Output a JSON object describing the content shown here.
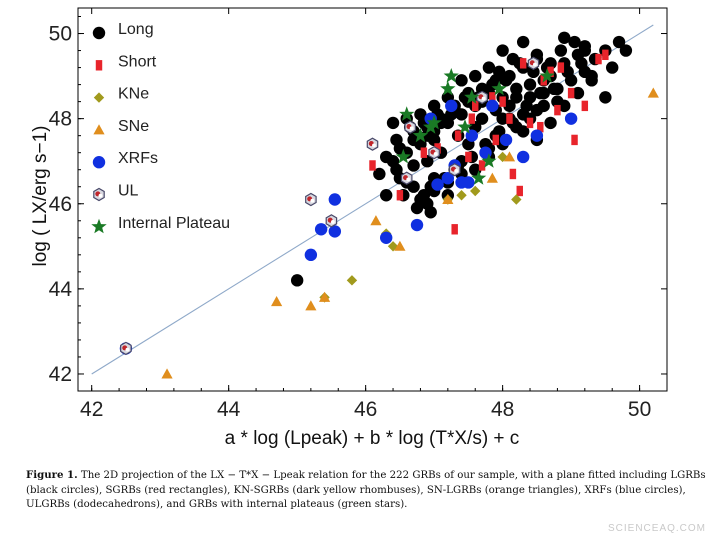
{
  "chart_data": {
    "type": "scatter",
    "xlabel": "a * log (Lpeak) + b * log (T*X/s) + c",
    "ylabel": "log ( LX/erg s−1)",
    "xlim": [
      41.8,
      50.4
    ],
    "ylim": [
      41.6,
      50.6
    ],
    "x_ticks": [
      42,
      44,
      46,
      48,
      50
    ],
    "y_ticks": [
      42,
      44,
      46,
      48,
      50
    ],
    "grid": false,
    "legend_position": "top-left",
    "fit_line": {
      "x": [
        42,
        50.2
      ],
      "y": [
        42.0,
        50.2
      ],
      "color": "#8fa9c9"
    },
    "series": [
      {
        "name": "Long",
        "marker": "circle",
        "color": "#000000",
        "points": [
          [
            45.0,
            44.2
          ],
          [
            46.3,
            46.2
          ],
          [
            46.5,
            46.6
          ],
          [
            46.7,
            46.9
          ],
          [
            46.8,
            46.1
          ],
          [
            46.9,
            46.0
          ],
          [
            46.95,
            45.8
          ],
          [
            46.7,
            46.4
          ],
          [
            46.9,
            47.0
          ],
          [
            47.0,
            47.5
          ],
          [
            47.1,
            47.2
          ],
          [
            47.0,
            46.6
          ],
          [
            47.2,
            46.2
          ],
          [
            47.3,
            46.8
          ],
          [
            47.4,
            47.0
          ],
          [
            47.35,
            47.6
          ],
          [
            47.5,
            47.4
          ],
          [
            47.6,
            47.8
          ],
          [
            47.7,
            48.0
          ],
          [
            47.8,
            47.3
          ],
          [
            47.9,
            47.6
          ],
          [
            48.0,
            48.0
          ],
          [
            48.1,
            48.3
          ],
          [
            48.2,
            48.5
          ],
          [
            48.3,
            48.1
          ],
          [
            48.4,
            48.8
          ],
          [
            48.5,
            48.2
          ],
          [
            48.6,
            48.6
          ],
          [
            48.7,
            49.0
          ],
          [
            48.8,
            48.4
          ],
          [
            48.9,
            49.3
          ],
          [
            49.0,
            48.9
          ],
          [
            49.1,
            49.5
          ],
          [
            49.2,
            49.1
          ],
          [
            49.3,
            49.0
          ],
          [
            49.5,
            49.6
          ],
          [
            49.7,
            49.8
          ],
          [
            49.6,
            49.2
          ],
          [
            49.2,
            49.7
          ],
          [
            48.7,
            49.3
          ],
          [
            48.5,
            49.5
          ],
          [
            48.3,
            49.8
          ],
          [
            48.0,
            49.6
          ],
          [
            47.8,
            49.2
          ],
          [
            47.6,
            49.0
          ],
          [
            47.4,
            48.9
          ],
          [
            47.2,
            48.5
          ],
          [
            47.0,
            48.3
          ],
          [
            46.8,
            48.1
          ],
          [
            46.6,
            48.0
          ],
          [
            46.4,
            47.9
          ],
          [
            46.7,
            47.7
          ],
          [
            46.9,
            47.6
          ],
          [
            47.1,
            47.9
          ],
          [
            47.3,
            48.2
          ],
          [
            47.5,
            48.4
          ],
          [
            47.7,
            48.7
          ],
          [
            47.9,
            48.9
          ],
          [
            48.1,
            49.0
          ],
          [
            48.3,
            49.2
          ],
          [
            48.5,
            49.4
          ],
          [
            48.9,
            49.9
          ],
          [
            49.2,
            49.6
          ],
          [
            48.6,
            48.9
          ],
          [
            48.4,
            48.5
          ],
          [
            48.2,
            47.8
          ],
          [
            48.0,
            47.4
          ],
          [
            47.8,
            47.1
          ],
          [
            47.6,
            46.8
          ],
          [
            47.4,
            46.7
          ],
          [
            47.2,
            46.5
          ],
          [
            47.0,
            46.3
          ],
          [
            46.85,
            46.2
          ],
          [
            46.6,
            46.5
          ],
          [
            46.45,
            46.8
          ],
          [
            46.3,
            47.1
          ],
          [
            46.5,
            47.3
          ],
          [
            46.7,
            47.5
          ],
          [
            46.9,
            47.8
          ],
          [
            47.1,
            48.0
          ],
          [
            47.3,
            48.3
          ],
          [
            47.5,
            48.6
          ],
          [
            47.7,
            48.4
          ],
          [
            47.9,
            48.2
          ],
          [
            48.1,
            48.0
          ],
          [
            48.3,
            47.7
          ],
          [
            48.5,
            47.5
          ],
          [
            48.7,
            47.9
          ],
          [
            48.9,
            48.3
          ],
          [
            49.1,
            48.6
          ],
          [
            49.3,
            48.9
          ],
          [
            49.5,
            48.5
          ],
          [
            49.8,
            49.6
          ],
          [
            48.8,
            48.7
          ],
          [
            48.6,
            48.3
          ],
          [
            48.4,
            48.0
          ],
          [
            48.2,
            48.7
          ],
          [
            48.0,
            48.5
          ],
          [
            47.8,
            48.6
          ],
          [
            47.6,
            48.3
          ],
          [
            47.4,
            48.1
          ],
          [
            47.2,
            47.9
          ],
          [
            47.0,
            47.7
          ],
          [
            46.8,
            47.4
          ],
          [
            46.6,
            47.2
          ],
          [
            46.4,
            47.0
          ],
          [
            46.2,
            46.7
          ],
          [
            46.55,
            46.2
          ],
          [
            46.75,
            45.9
          ],
          [
            46.95,
            46.4
          ],
          [
            47.15,
            46.6
          ],
          [
            47.35,
            46.9
          ],
          [
            47.55,
            47.1
          ],
          [
            47.75,
            47.4
          ],
          [
            47.95,
            47.7
          ],
          [
            48.15,
            47.9
          ],
          [
            48.35,
            48.3
          ],
          [
            48.55,
            48.6
          ],
          [
            48.75,
            48.7
          ],
          [
            48.95,
            49.1
          ],
          [
            49.15,
            49.3
          ],
          [
            49.35,
            49.4
          ],
          [
            48.05,
            48.9
          ],
          [
            47.85,
            48.8
          ],
          [
            47.65,
            48.5
          ],
          [
            47.45,
            48.5
          ],
          [
            47.25,
            48.1
          ],
          [
            47.05,
            48.1
          ],
          [
            46.85,
            47.9
          ],
          [
            46.65,
            47.8
          ],
          [
            46.45,
            47.5
          ],
          [
            48.25,
            49.3
          ],
          [
            48.45,
            49.1
          ],
          [
            48.65,
            49.2
          ],
          [
            48.85,
            49.6
          ],
          [
            49.05,
            49.8
          ],
          [
            48.15,
            49.4
          ],
          [
            47.95,
            49.1
          ]
        ]
      },
      {
        "name": "Short",
        "marker": "square",
        "color": "#e8242b",
        "points": [
          [
            46.1,
            46.9
          ],
          [
            46.5,
            46.2
          ],
          [
            46.85,
            47.2
          ],
          [
            47.05,
            47.3
          ],
          [
            47.3,
            45.4
          ],
          [
            47.5,
            47.1
          ],
          [
            47.7,
            46.9
          ],
          [
            47.9,
            47.5
          ],
          [
            48.0,
            48.4
          ],
          [
            48.15,
            46.7
          ],
          [
            48.25,
            46.3
          ],
          [
            48.4,
            47.9
          ],
          [
            48.55,
            47.8
          ],
          [
            48.7,
            49.1
          ],
          [
            48.8,
            48.2
          ],
          [
            49.0,
            48.6
          ],
          [
            49.05,
            47.5
          ],
          [
            49.2,
            48.3
          ],
          [
            49.4,
            49.4
          ],
          [
            49.5,
            49.5
          ],
          [
            48.3,
            49.3
          ],
          [
            48.1,
            48.0
          ],
          [
            47.6,
            48.3
          ],
          [
            47.35,
            47.6
          ],
          [
            48.6,
            48.9
          ],
          [
            48.85,
            49.2
          ],
          [
            47.85,
            48.5
          ],
          [
            47.55,
            48.0
          ]
        ]
      },
      {
        "name": "KNe",
        "marker": "diamond",
        "color": "#a19a1d",
        "points": [
          [
            45.4,
            43.8
          ],
          [
            45.8,
            44.2
          ],
          [
            46.3,
            45.3
          ],
          [
            46.4,
            45.0
          ],
          [
            47.2,
            46.1
          ],
          [
            47.4,
            46.2
          ],
          [
            47.6,
            46.3
          ],
          [
            48.0,
            47.1
          ],
          [
            48.2,
            46.1
          ]
        ]
      },
      {
        "name": "SNe",
        "marker": "triangle",
        "color": "#e08e1d",
        "points": [
          [
            43.1,
            42.0
          ],
          [
            44.7,
            43.7
          ],
          [
            45.2,
            43.6
          ],
          [
            45.4,
            43.8
          ],
          [
            46.15,
            45.6
          ],
          [
            46.5,
            45.0
          ],
          [
            47.2,
            46.1
          ],
          [
            47.85,
            46.6
          ],
          [
            48.1,
            47.1
          ],
          [
            50.2,
            48.6
          ]
        ]
      },
      {
        "name": "XRFs",
        "marker": "circle",
        "color": "#1030e0",
        "points": [
          [
            42.5,
            42.6
          ],
          [
            45.2,
            44.8
          ],
          [
            45.35,
            45.4
          ],
          [
            45.55,
            45.35
          ],
          [
            45.55,
            46.1
          ],
          [
            46.3,
            45.2
          ],
          [
            46.75,
            45.5
          ],
          [
            47.05,
            46.45
          ],
          [
            47.2,
            46.6
          ],
          [
            47.4,
            46.5
          ],
          [
            47.5,
            46.5
          ],
          [
            47.3,
            46.9
          ],
          [
            46.95,
            48.0
          ],
          [
            47.25,
            48.3
          ],
          [
            47.55,
            47.6
          ],
          [
            47.85,
            48.3
          ],
          [
            48.05,
            47.5
          ],
          [
            48.3,
            47.1
          ],
          [
            48.5,
            47.6
          ],
          [
            49.0,
            48.0
          ],
          [
            47.75,
            47.2
          ]
        ]
      },
      {
        "name": "UL",
        "marker": "dodecahedron",
        "color": "#4a4a6a",
        "points": [
          [
            42.5,
            42.6
          ],
          [
            45.2,
            46.1
          ],
          [
            45.5,
            45.6
          ],
          [
            46.1,
            47.4
          ],
          [
            46.6,
            46.6
          ],
          [
            46.65,
            47.8
          ],
          [
            47.0,
            47.2
          ],
          [
            47.3,
            46.8
          ],
          [
            47.7,
            48.5
          ],
          [
            48.45,
            49.3
          ]
        ]
      },
      {
        "name": "Internal Plateau",
        "marker": "star",
        "color": "#1a7a25",
        "points": [
          [
            46.6,
            48.1
          ],
          [
            46.55,
            47.1
          ],
          [
            46.8,
            47.6
          ],
          [
            47.0,
            47.9
          ],
          [
            47.2,
            48.7
          ],
          [
            47.25,
            49.0
          ],
          [
            47.45,
            47.8
          ],
          [
            47.55,
            48.5
          ],
          [
            47.65,
            46.6
          ],
          [
            47.8,
            47.0
          ],
          [
            47.95,
            48.7
          ],
          [
            48.65,
            49.0
          ],
          [
            46.95,
            47.8
          ]
        ]
      }
    ]
  },
  "caption": {
    "label": "Figure 1.",
    "text": "The 2D projection of the LX − T*X − Lpeak relation for the 222 GRBs of our sample, with a plane fitted including LGRBs (black circles), SGRBs (red rectangles), KN-SGRBs (dark yellow rhombuses), SN-LGRBs (orange triangles), XRFs (blue circles), ULGRBs (dodecahedrons), and GRBs with internal plateaus (green stars)."
  },
  "watermark": "SCIENCEAQ.COM"
}
